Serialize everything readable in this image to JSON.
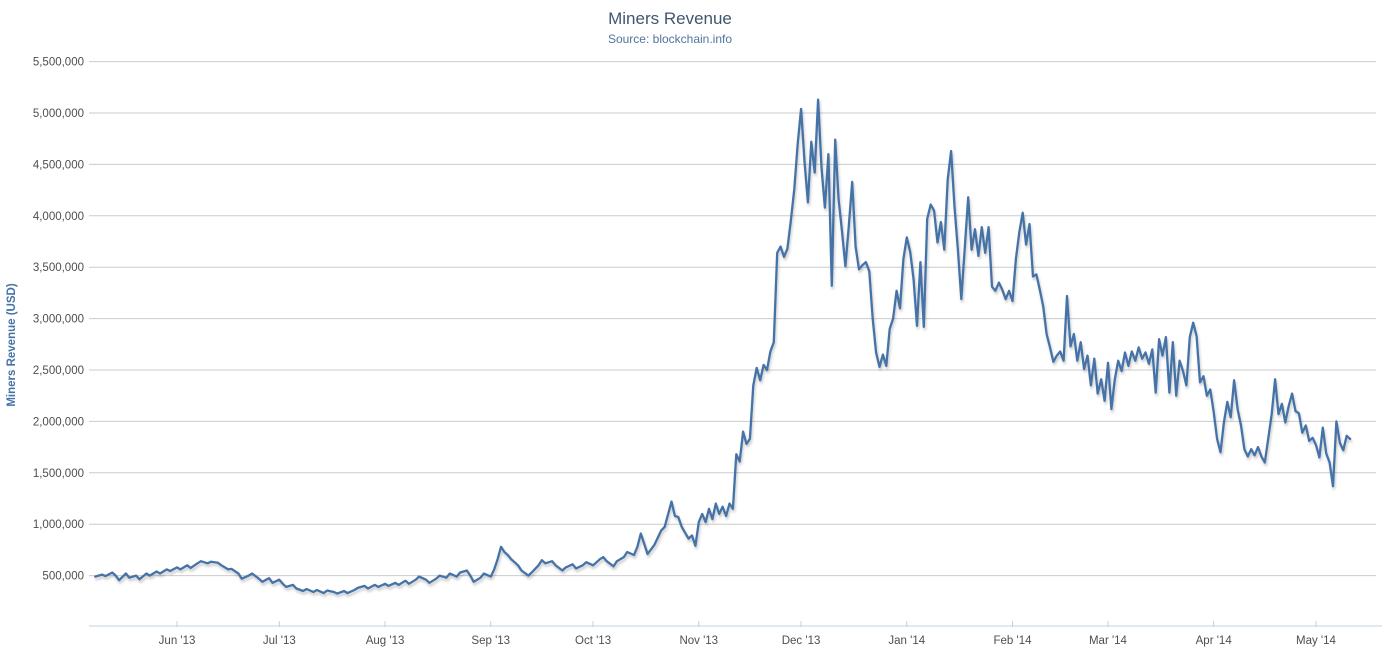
{
  "chart_data": {
    "type": "line",
    "title": "Miners Revenue",
    "subtitle": "Source: blockchain.info",
    "ylabel": "Miners Revenue (USD)",
    "xlabel": "",
    "legend": "none",
    "grid": true,
    "ylim": [
      0,
      5500000
    ],
    "xlim_days": [
      0,
      371
    ],
    "x_unit": "days since first plotted day (~early May 2013), daily series",
    "y_ticks": [
      500000,
      1000000,
      1500000,
      2000000,
      2500000,
      3000000,
      3500000,
      4000000,
      4500000,
      5000000,
      5500000
    ],
    "x_ticks": [
      {
        "day": 24,
        "label": "Jun '13"
      },
      {
        "day": 54,
        "label": "Jul '13"
      },
      {
        "day": 85,
        "label": "Aug '13"
      },
      {
        "day": 116,
        "label": "Sep '13"
      },
      {
        "day": 146,
        "label": "Oct '13"
      },
      {
        "day": 177,
        "label": "Nov '13"
      },
      {
        "day": 207,
        "label": "Dec '13"
      },
      {
        "day": 238,
        "label": "Jan '14"
      },
      {
        "day": 269,
        "label": "Feb '14"
      },
      {
        "day": 297,
        "label": "Mar '14"
      },
      {
        "day": 328,
        "label": "Apr '14"
      },
      {
        "day": 358,
        "label": "May '14"
      }
    ],
    "colors": {
      "line": "#4572A7",
      "title": "#3E576F",
      "subtitle": "#4D759E",
      "axis_label": "#4e4e4e",
      "y_axis_title": "#4572A7",
      "gridline": "#CBCBCB",
      "axis_line": "#C0D0E0",
      "background": "#FFFFFF"
    },
    "points": [
      [
        0,
        490000
      ],
      [
        2,
        510000
      ],
      [
        3,
        495000
      ],
      [
        5,
        530000
      ],
      [
        6,
        500000
      ],
      [
        7,
        455000
      ],
      [
        9,
        520000
      ],
      [
        10,
        480000
      ],
      [
        12,
        500000
      ],
      [
        13,
        465000
      ],
      [
        15,
        520000
      ],
      [
        16,
        500000
      ],
      [
        18,
        540000
      ],
      [
        19,
        520000
      ],
      [
        21,
        560000
      ],
      [
        22,
        545000
      ],
      [
        24,
        580000
      ],
      [
        25,
        560000
      ],
      [
        27,
        600000
      ],
      [
        28,
        575000
      ],
      [
        30,
        620000
      ],
      [
        31,
        640000
      ],
      [
        33,
        620000
      ],
      [
        34,
        635000
      ],
      [
        36,
        625000
      ],
      [
        37,
        600000
      ],
      [
        39,
        560000
      ],
      [
        40,
        565000
      ],
      [
        42,
        520000
      ],
      [
        43,
        470000
      ],
      [
        45,
        500000
      ],
      [
        46,
        520000
      ],
      [
        48,
        470000
      ],
      [
        49,
        440000
      ],
      [
        51,
        475000
      ],
      [
        52,
        430000
      ],
      [
        54,
        460000
      ],
      [
        55,
        420000
      ],
      [
        56,
        390000
      ],
      [
        58,
        410000
      ],
      [
        59,
        375000
      ],
      [
        61,
        350000
      ],
      [
        62,
        370000
      ],
      [
        64,
        340000
      ],
      [
        65,
        360000
      ],
      [
        67,
        330000
      ],
      [
        68,
        355000
      ],
      [
        70,
        340000
      ],
      [
        71,
        325000
      ],
      [
        73,
        350000
      ],
      [
        74,
        330000
      ],
      [
        76,
        360000
      ],
      [
        77,
        380000
      ],
      [
        79,
        400000
      ],
      [
        80,
        375000
      ],
      [
        82,
        410000
      ],
      [
        83,
        390000
      ],
      [
        85,
        420000
      ],
      [
        86,
        400000
      ],
      [
        88,
        430000
      ],
      [
        89,
        410000
      ],
      [
        91,
        450000
      ],
      [
        92,
        420000
      ],
      [
        94,
        460000
      ],
      [
        95,
        490000
      ],
      [
        97,
        460000
      ],
      [
        98,
        430000
      ],
      [
        100,
        470000
      ],
      [
        101,
        500000
      ],
      [
        103,
        480000
      ],
      [
        104,
        520000
      ],
      [
        106,
        490000
      ],
      [
        107,
        530000
      ],
      [
        109,
        550000
      ],
      [
        110,
        500000
      ],
      [
        111,
        440000
      ],
      [
        113,
        480000
      ],
      [
        114,
        520000
      ],
      [
        116,
        490000
      ],
      [
        117,
        560000
      ],
      [
        118,
        660000
      ],
      [
        119,
        780000
      ],
      [
        120,
        730000
      ],
      [
        121,
        700000
      ],
      [
        122,
        660000
      ],
      [
        124,
        600000
      ],
      [
        125,
        550000
      ],
      [
        127,
        500000
      ],
      [
        128,
        530000
      ],
      [
        130,
        600000
      ],
      [
        131,
        650000
      ],
      [
        132,
        620000
      ],
      [
        134,
        640000
      ],
      [
        135,
        600000
      ],
      [
        137,
        550000
      ],
      [
        138,
        580000
      ],
      [
        140,
        610000
      ],
      [
        141,
        570000
      ],
      [
        143,
        600000
      ],
      [
        144,
        630000
      ],
      [
        146,
        600000
      ],
      [
        148,
        660000
      ],
      [
        149,
        680000
      ],
      [
        150,
        640000
      ],
      [
        152,
        590000
      ],
      [
        153,
        640000
      ],
      [
        155,
        680000
      ],
      [
        156,
        730000
      ],
      [
        158,
        700000
      ],
      [
        159,
        780000
      ],
      [
        160,
        910000
      ],
      [
        162,
        710000
      ],
      [
        164,
        800000
      ],
      [
        166,
        940000
      ],
      [
        167,
        975000
      ],
      [
        169,
        1220000
      ],
      [
        170,
        1080000
      ],
      [
        171,
        1070000
      ],
      [
        172,
        975000
      ],
      [
        174,
        860000
      ],
      [
        175,
        890000
      ],
      [
        176,
        790000
      ],
      [
        177,
        1020000
      ],
      [
        178,
        1100000
      ],
      [
        179,
        1020000
      ],
      [
        180,
        1150000
      ],
      [
        181,
        1050000
      ],
      [
        182,
        1200000
      ],
      [
        183,
        1100000
      ],
      [
        184,
        1170000
      ],
      [
        185,
        1080000
      ],
      [
        186,
        1200000
      ],
      [
        187,
        1150000
      ],
      [
        188,
        1680000
      ],
      [
        189,
        1610000
      ],
      [
        190,
        1900000
      ],
      [
        191,
        1780000
      ],
      [
        192,
        1830000
      ],
      [
        193,
        2350000
      ],
      [
        194,
        2520000
      ],
      [
        195,
        2400000
      ],
      [
        196,
        2550000
      ],
      [
        197,
        2500000
      ],
      [
        198,
        2680000
      ],
      [
        199,
        2770000
      ],
      [
        200,
        3640000
      ],
      [
        201,
        3700000
      ],
      [
        202,
        3600000
      ],
      [
        203,
        3680000
      ],
      [
        204,
        3950000
      ],
      [
        205,
        4260000
      ],
      [
        206,
        4700000
      ],
      [
        207,
        5040000
      ],
      [
        208,
        4530000
      ],
      [
        209,
        4130000
      ],
      [
        210,
        4720000
      ],
      [
        211,
        4420000
      ],
      [
        212,
        5130000
      ],
      [
        213,
        4470000
      ],
      [
        214,
        4080000
      ],
      [
        215,
        4600000
      ],
      [
        216,
        3320000
      ],
      [
        217,
        4740000
      ],
      [
        218,
        4160000
      ],
      [
        219,
        3850000
      ],
      [
        220,
        3510000
      ],
      [
        221,
        3900000
      ],
      [
        222,
        4330000
      ],
      [
        223,
        3700000
      ],
      [
        224,
        3480000
      ],
      [
        225,
        3520000
      ],
      [
        226,
        3550000
      ],
      [
        227,
        3460000
      ],
      [
        228,
        3000000
      ],
      [
        229,
        2670000
      ],
      [
        230,
        2530000
      ],
      [
        231,
        2650000
      ],
      [
        232,
        2540000
      ],
      [
        233,
        2900000
      ],
      [
        234,
        3000000
      ],
      [
        235,
        3270000
      ],
      [
        236,
        3100000
      ],
      [
        237,
        3580000
      ],
      [
        238,
        3790000
      ],
      [
        239,
        3650000
      ],
      [
        240,
        3380000
      ],
      [
        241,
        2930000
      ],
      [
        242,
        3550000
      ],
      [
        243,
        2920000
      ],
      [
        244,
        3970000
      ],
      [
        245,
        4110000
      ],
      [
        246,
        4050000
      ],
      [
        247,
        3740000
      ],
      [
        248,
        3940000
      ],
      [
        249,
        3670000
      ],
      [
        250,
        4350000
      ],
      [
        251,
        4630000
      ],
      [
        252,
        4090000
      ],
      [
        253,
        3670000
      ],
      [
        254,
        3190000
      ],
      [
        256,
        4180000
      ],
      [
        257,
        3670000
      ],
      [
        258,
        3870000
      ],
      [
        259,
        3610000
      ],
      [
        260,
        3890000
      ],
      [
        261,
        3640000
      ],
      [
        262,
        3890000
      ],
      [
        263,
        3310000
      ],
      [
        264,
        3270000
      ],
      [
        265,
        3350000
      ],
      [
        266,
        3280000
      ],
      [
        267,
        3190000
      ],
      [
        268,
        3270000
      ],
      [
        269,
        3170000
      ],
      [
        270,
        3580000
      ],
      [
        271,
        3840000
      ],
      [
        272,
        4030000
      ],
      [
        273,
        3720000
      ],
      [
        274,
        3920000
      ],
      [
        275,
        3410000
      ],
      [
        276,
        3430000
      ],
      [
        277,
        3280000
      ],
      [
        278,
        3120000
      ],
      [
        279,
        2850000
      ],
      [
        280,
        2720000
      ],
      [
        281,
        2580000
      ],
      [
        282,
        2640000
      ],
      [
        283,
        2680000
      ],
      [
        284,
        2590000
      ],
      [
        285,
        3220000
      ],
      [
        286,
        2730000
      ],
      [
        287,
        2850000
      ],
      [
        288,
        2590000
      ],
      [
        289,
        2770000
      ],
      [
        290,
        2510000
      ],
      [
        291,
        2640000
      ],
      [
        292,
        2350000
      ],
      [
        293,
        2610000
      ],
      [
        294,
        2270000
      ],
      [
        295,
        2410000
      ],
      [
        296,
        2200000
      ],
      [
        297,
        2570000
      ],
      [
        298,
        2120000
      ],
      [
        299,
        2410000
      ],
      [
        300,
        2590000
      ],
      [
        301,
        2490000
      ],
      [
        302,
        2670000
      ],
      [
        303,
        2540000
      ],
      [
        304,
        2680000
      ],
      [
        305,
        2590000
      ],
      [
        306,
        2720000
      ],
      [
        307,
        2610000
      ],
      [
        308,
        2670000
      ],
      [
        309,
        2560000
      ],
      [
        310,
        2700000
      ],
      [
        311,
        2280000
      ],
      [
        312,
        2800000
      ],
      [
        313,
        2640000
      ],
      [
        314,
        2820000
      ],
      [
        315,
        2280000
      ],
      [
        316,
        2770000
      ],
      [
        317,
        2250000
      ],
      [
        318,
        2590000
      ],
      [
        319,
        2490000
      ],
      [
        320,
        2350000
      ],
      [
        321,
        2820000
      ],
      [
        322,
        2960000
      ],
      [
        323,
        2830000
      ],
      [
        324,
        2380000
      ],
      [
        325,
        2440000
      ],
      [
        326,
        2250000
      ],
      [
        327,
        2310000
      ],
      [
        328,
        2090000
      ],
      [
        329,
        1830000
      ],
      [
        330,
        1700000
      ],
      [
        331,
        1990000
      ],
      [
        332,
        2190000
      ],
      [
        333,
        2040000
      ],
      [
        334,
        2400000
      ],
      [
        335,
        2120000
      ],
      [
        336,
        1960000
      ],
      [
        337,
        1730000
      ],
      [
        338,
        1660000
      ],
      [
        339,
        1730000
      ],
      [
        340,
        1670000
      ],
      [
        341,
        1750000
      ],
      [
        342,
        1660000
      ],
      [
        343,
        1600000
      ],
      [
        344,
        1830000
      ],
      [
        345,
        2070000
      ],
      [
        346,
        2410000
      ],
      [
        347,
        2070000
      ],
      [
        348,
        2170000
      ],
      [
        349,
        1990000
      ],
      [
        350,
        2150000
      ],
      [
        351,
        2270000
      ],
      [
        352,
        2100000
      ],
      [
        353,
        2080000
      ],
      [
        354,
        1890000
      ],
      [
        355,
        1960000
      ],
      [
        356,
        1810000
      ],
      [
        357,
        1840000
      ],
      [
        358,
        1770000
      ],
      [
        359,
        1650000
      ],
      [
        360,
        1940000
      ],
      [
        361,
        1690000
      ],
      [
        362,
        1600000
      ],
      [
        363,
        1370000
      ],
      [
        364,
        2000000
      ],
      [
        365,
        1790000
      ],
      [
        366,
        1720000
      ],
      [
        367,
        1860000
      ],
      [
        368,
        1830000
      ]
    ]
  }
}
